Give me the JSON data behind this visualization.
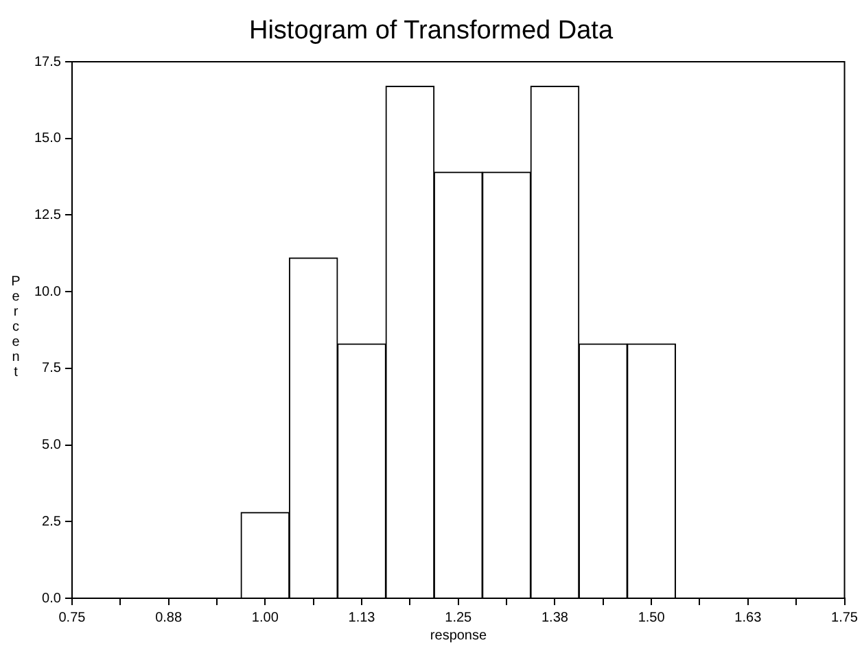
{
  "chart_data": {
    "type": "histogram",
    "title": "Histogram of Transformed Data",
    "xlabel": "response",
    "ylabel": "Percent",
    "bins": [
      0.96875,
      1.03125,
      1.09375,
      1.15625,
      1.21875,
      1.28125,
      1.34375,
      1.40625,
      1.46875,
      1.53125
    ],
    "values": [
      2.8,
      11.1,
      8.3,
      16.7,
      13.9,
      13.9,
      16.7,
      8.3,
      8.3
    ],
    "color": "#ffffff",
    "xlim": [
      0.75,
      1.75
    ],
    "xticks": [
      {
        "value": 0.75,
        "label": "0.75"
      },
      {
        "value": 0.8125,
        "label": null
      },
      {
        "value": 0.875,
        "label": "0.88"
      },
      {
        "value": 0.9375,
        "label": null
      },
      {
        "value": 1.0,
        "label": "1.00"
      },
      {
        "value": 1.0625,
        "label": null
      },
      {
        "value": 1.125,
        "label": "1.13"
      },
      {
        "value": 1.1875,
        "label": null
      },
      {
        "value": 1.25,
        "label": "1.25"
      },
      {
        "value": 1.3125,
        "label": null
      },
      {
        "value": 1.375,
        "label": "1.38"
      },
      {
        "value": 1.4375,
        "label": null
      },
      {
        "value": 1.5,
        "label": "1.50"
      },
      {
        "value": 1.5625,
        "label": null
      },
      {
        "value": 1.625,
        "label": "1.63"
      },
      {
        "value": 1.6875,
        "label": null
      },
      {
        "value": 1.75,
        "label": "1.75"
      }
    ],
    "ylim": [
      0,
      17.5
    ],
    "yticks": [
      {
        "value": 0,
        "label": "0.0"
      },
      {
        "value": 2.5,
        "label": "2.5"
      },
      {
        "value": 5,
        "label": "5.0"
      },
      {
        "value": 7.5,
        "label": "7.5"
      },
      {
        "value": 10,
        "label": "10.0"
      },
      {
        "value": 12.5,
        "label": "12.5"
      },
      {
        "value": 15,
        "label": "15.0"
      },
      {
        "value": 17.5,
        "label": "17.5"
      }
    ],
    "grid": false,
    "legend": false
  }
}
